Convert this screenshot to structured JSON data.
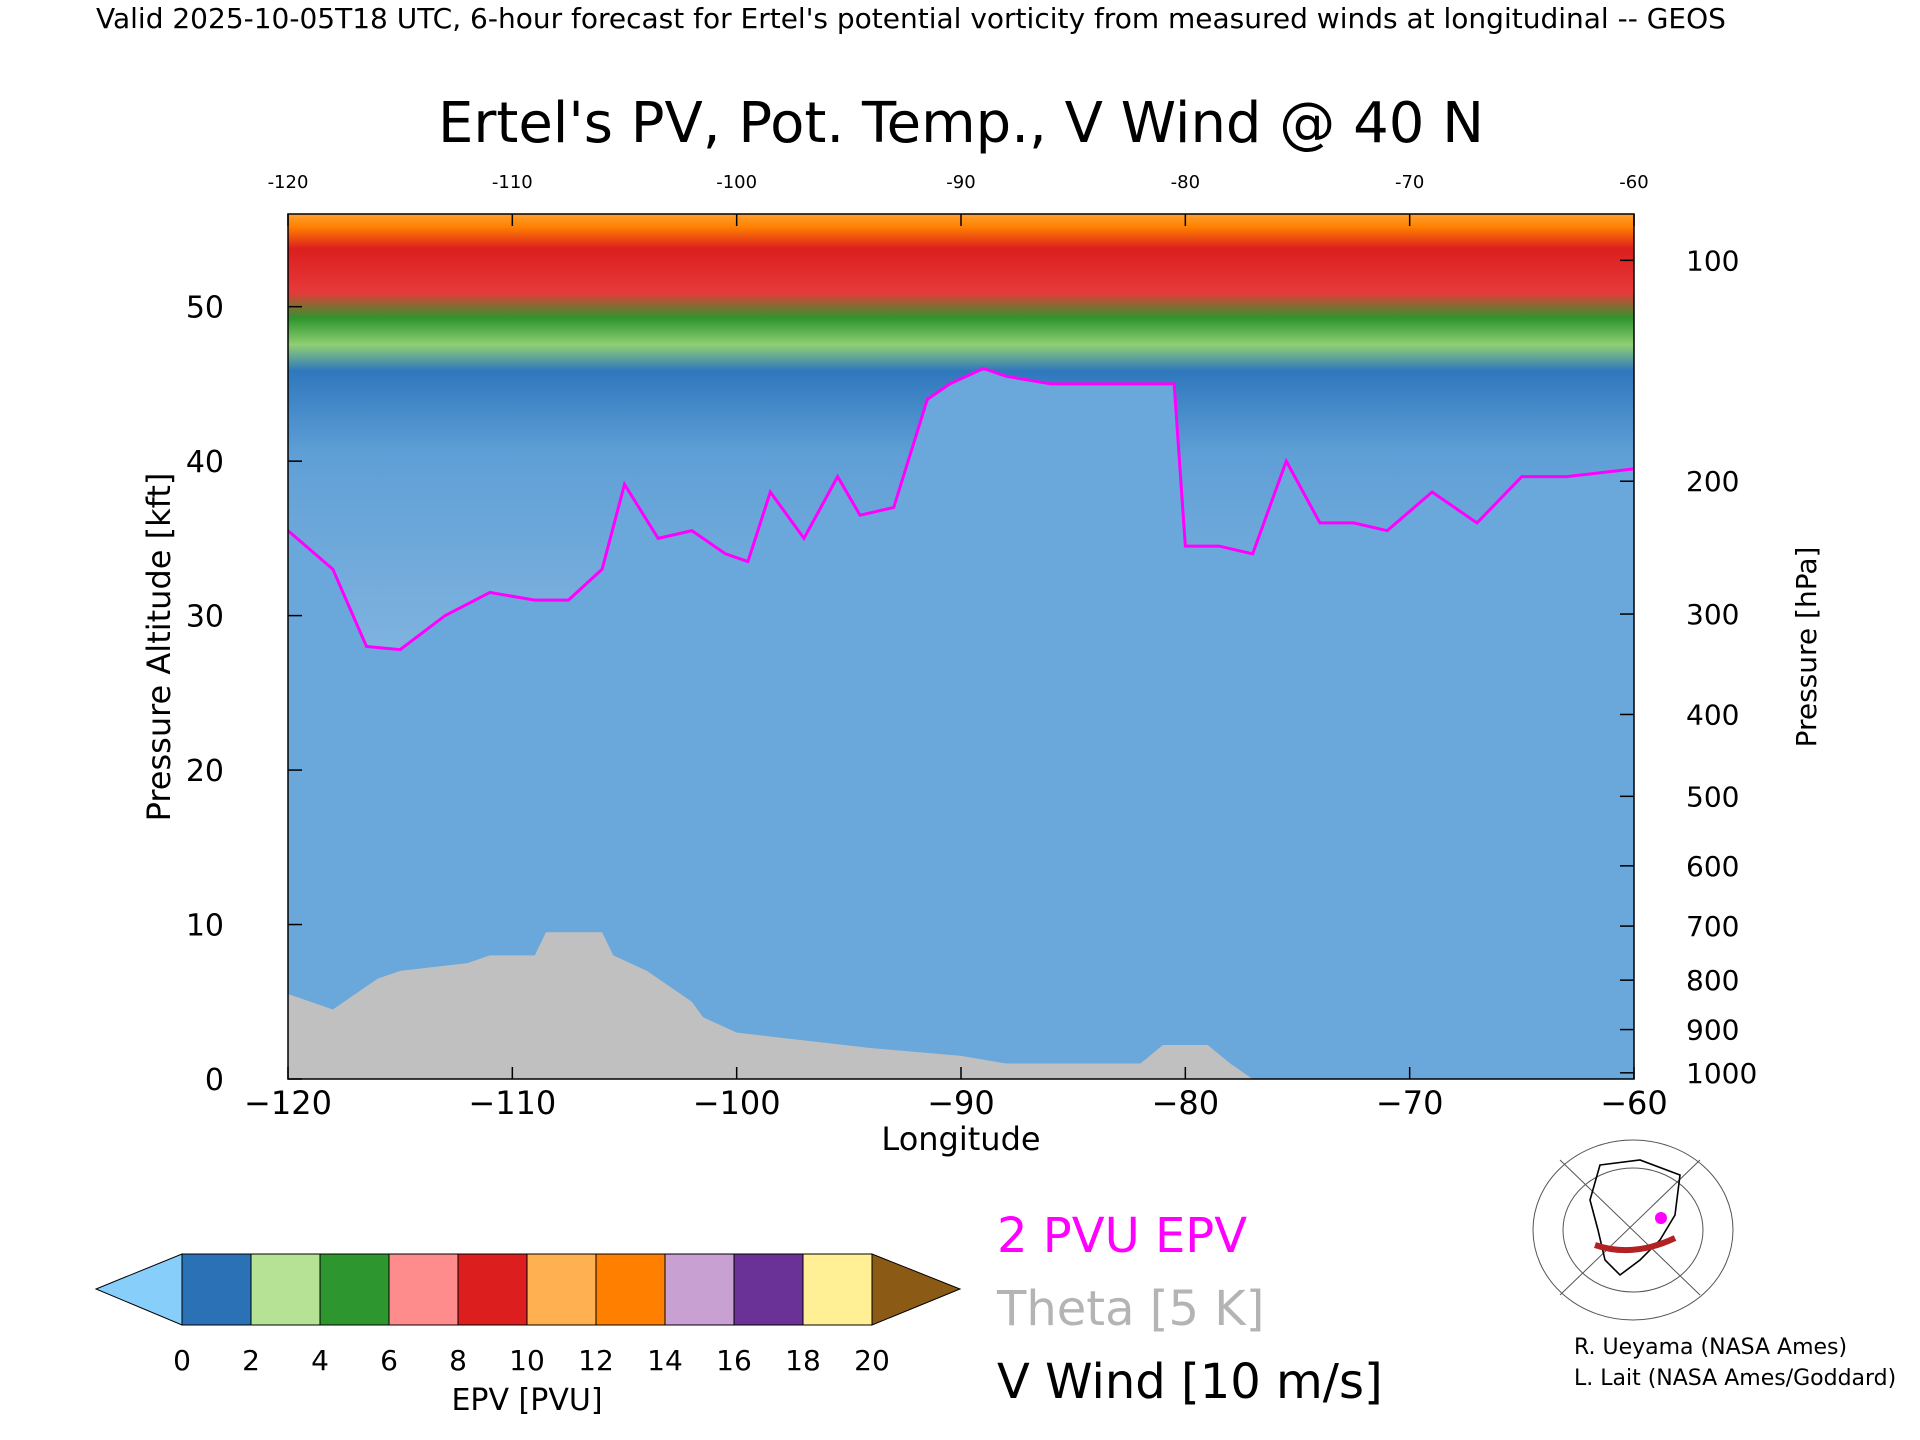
{
  "header": {
    "valid_line": "Valid 2025-10-05T18 UTC, 6-hour forecast for Ertel's potential vorticity from measured winds at longitudinal -- GEOS"
  },
  "chart_data": {
    "type": "heatmap",
    "title": "Ertel's PV, Pot. Temp., V Wind @ 40 N",
    "xlabel": "Longitude",
    "ylabel": "Pressure Altitude [kft]",
    "y2label": "Pressure [hPa]",
    "xlim": [
      -120,
      -60
    ],
    "ylim": [
      0,
      56
    ],
    "x_ticks": [
      -120,
      -110,
      -100,
      -90,
      -80,
      -70,
      -60
    ],
    "x_tick_labels": [
      "−120",
      "−110",
      "−100",
      "−90",
      "−80",
      "−70",
      "−60"
    ],
    "top_x_tick_labels": [
      "-120",
      "-110",
      "-100",
      "-90",
      "-80",
      "-70",
      "-60"
    ],
    "y_ticks": [
      0,
      10,
      20,
      30,
      40,
      50
    ],
    "y2_ticks": [
      {
        "p": 100,
        "kft": 53.0
      },
      {
        "p": 200,
        "kft": 38.7
      },
      {
        "p": 300,
        "kft": 30.1
      },
      {
        "p": 400,
        "kft": 23.6
      },
      {
        "p": 500,
        "kft": 18.3
      },
      {
        "p": 600,
        "kft": 13.8
      },
      {
        "p": 700,
        "kft": 9.9
      },
      {
        "p": 800,
        "kft": 6.4
      },
      {
        "p": 900,
        "kft": 3.2
      },
      {
        "p": 1000,
        "kft": 0.4
      }
    ],
    "tropopause_2pvu_kft": [
      [
        -120,
        35.5
      ],
      [
        -118,
        33
      ],
      [
        -116.5,
        28
      ],
      [
        -115,
        27.8
      ],
      [
        -113,
        30
      ],
      [
        -111,
        31.5
      ],
      [
        -109,
        31
      ],
      [
        -107.5,
        31
      ],
      [
        -106,
        33
      ],
      [
        -105,
        38.5
      ],
      [
        -103.5,
        35
      ],
      [
        -102,
        35.5
      ],
      [
        -100.5,
        34
      ],
      [
        -99.5,
        33.5
      ],
      [
        -98.5,
        38
      ],
      [
        -97,
        35
      ],
      [
        -95.5,
        39
      ],
      [
        -94.5,
        36.5
      ],
      [
        -93,
        37
      ],
      [
        -91.5,
        44
      ],
      [
        -90.5,
        45
      ],
      [
        -89,
        46
      ],
      [
        -88,
        45.5
      ],
      [
        -86,
        45
      ],
      [
        -80.5,
        45
      ],
      [
        -80,
        34.5
      ],
      [
        -78.5,
        34.5
      ],
      [
        -77,
        34
      ],
      [
        -75.5,
        40
      ],
      [
        -74,
        36
      ],
      [
        -72.5,
        36
      ],
      [
        -71,
        35.5
      ],
      [
        -69,
        38
      ],
      [
        -67,
        36
      ],
      [
        -65,
        39
      ],
      [
        -63,
        39
      ],
      [
        -60,
        39.5
      ]
    ],
    "topography_kft": [
      [
        -120,
        5.5
      ],
      [
        -119,
        5
      ],
      [
        -118,
        4.5
      ],
      [
        -117,
        5.5
      ],
      [
        -116,
        6.5
      ],
      [
        -115,
        7
      ],
      [
        -112,
        7.5
      ],
      [
        -111,
        8
      ],
      [
        -109,
        8
      ],
      [
        -108.5,
        9.5
      ],
      [
        -106,
        9.5
      ],
      [
        -105.5,
        8
      ],
      [
        -104,
        7
      ],
      [
        -102,
        5
      ],
      [
        -101.5,
        4
      ],
      [
        -100,
        3
      ],
      [
        -97,
        2.5
      ],
      [
        -94,
        2
      ],
      [
        -90,
        1.5
      ],
      [
        -88,
        1
      ],
      [
        -82,
        1
      ],
      [
        -81,
        2.2
      ],
      [
        -79,
        2.2
      ],
      [
        -78,
        1
      ],
      [
        -77,
        0
      ]
    ],
    "colorbar": {
      "label": "EPV [PVU]",
      "ticks": [
        "0",
        "2",
        "4",
        "6",
        "8",
        "10",
        "12",
        "14",
        "16",
        "18",
        "20"
      ],
      "colors": [
        "#87cefa",
        "#2b71b5",
        "#b5e294",
        "#2e962e",
        "#ff8c8c",
        "#dc1e1e",
        "#ffb050",
        "#ff8000",
        "#c8a0d2",
        "#6a3296",
        "#fff096",
        "#8b5a14"
      ]
    },
    "legend": [
      {
        "label": "2 PVU EPV",
        "color": "#ff00ff"
      },
      {
        "label": "Theta [5 K]",
        "color": "#b4b4b4"
      },
      {
        "label": "V Wind [10 m/s]",
        "color": "#000000"
      }
    ]
  },
  "credits": {
    "line1": "R. Ueyama (NASA Ames)",
    "line2": "L. Lait (NASA Ames/Goddard)"
  }
}
